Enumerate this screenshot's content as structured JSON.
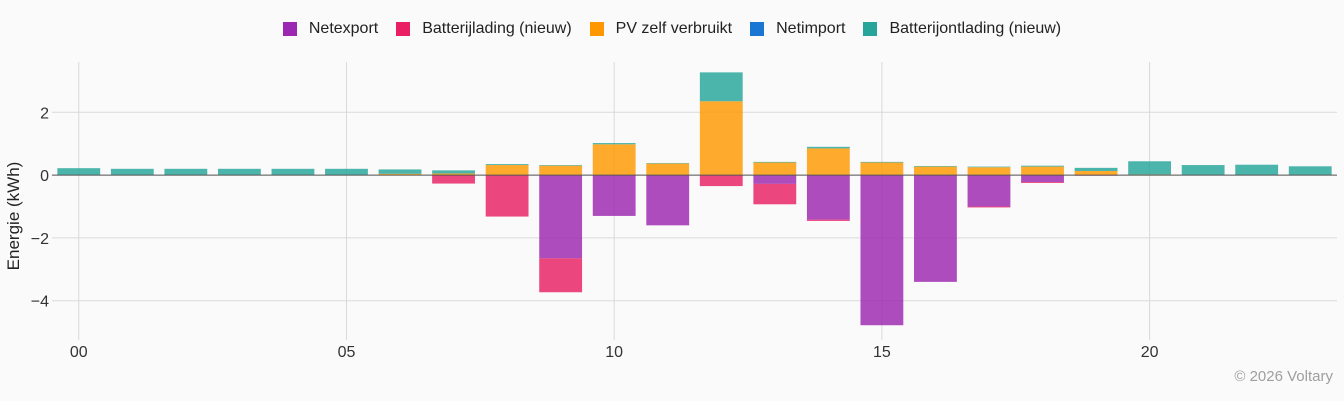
{
  "chart_data": {
    "type": "bar",
    "stacked": true,
    "ylabel": "Energie (kWh)",
    "xlabel": "",
    "x_tick_labels": [
      "00",
      "05",
      "10",
      "15",
      "20"
    ],
    "x_tick_hours": [
      0,
      5,
      10,
      15,
      20
    ],
    "y_ticks": [
      -4,
      -2,
      0,
      2
    ],
    "y_tick_labels": [
      "−4",
      "−2",
      "0",
      "2"
    ],
    "ylim": [
      -5.25,
      3.6
    ],
    "grid": true,
    "legend_position": "top-center",
    "categories": [
      "0",
      "1",
      "2",
      "3",
      "4",
      "5",
      "6",
      "7",
      "8",
      "9",
      "10",
      "11",
      "12",
      "13",
      "14",
      "15",
      "16",
      "17",
      "18",
      "19",
      "20",
      "21",
      "22",
      "23"
    ],
    "series": [
      {
        "name": "Netexport",
        "color": "#9c27b0",
        "values": [
          0,
          0,
          0,
          0,
          0,
          0,
          0,
          0,
          0,
          -2.65,
          -1.3,
          -1.6,
          0,
          -0.28,
          -1.42,
          -4.78,
          -3.4,
          -1.0,
          -0.22,
          0,
          0,
          0,
          0,
          0
        ]
      },
      {
        "name": "Batterijlading (nieuw)",
        "color": "#e91e63",
        "values": [
          0,
          0,
          0,
          0,
          0,
          0,
          0,
          -0.27,
          -1.32,
          -1.08,
          0,
          0,
          -0.35,
          -0.65,
          -0.04,
          0,
          0,
          -0.03,
          -0.03,
          -0.02,
          0,
          0,
          0,
          0
        ]
      },
      {
        "name": "PV zelf verbruikt",
        "color": "#ff9800",
        "values": [
          0,
          0,
          0,
          0,
          0,
          0,
          0.04,
          0.05,
          0.32,
          0.3,
          0.98,
          0.37,
          2.35,
          0.4,
          0.85,
          0.4,
          0.27,
          0.25,
          0.27,
          0.13,
          0.02,
          0,
          0,
          0
        ]
      },
      {
        "name": "Netimport",
        "color": "#1976d2",
        "values": [
          0,
          0,
          0,
          0,
          0,
          0,
          0,
          0,
          0,
          0,
          0,
          0,
          0,
          0,
          0,
          0,
          0,
          0,
          0,
          0,
          0,
          0,
          0,
          0
        ]
      },
      {
        "name": "Batterijontlading (nieuw)",
        "color": "#26a69a",
        "values": [
          0.22,
          0.2,
          0.2,
          0.2,
          0.2,
          0.2,
          0.14,
          0.1,
          0.03,
          0.02,
          0.04,
          0.01,
          0.92,
          0.02,
          0.05,
          0.02,
          0.02,
          0.02,
          0.03,
          0.1,
          0.42,
          0.32,
          0.33,
          0.28
        ]
      }
    ]
  },
  "footer": {
    "copyright": "© 2026 Voltary"
  }
}
